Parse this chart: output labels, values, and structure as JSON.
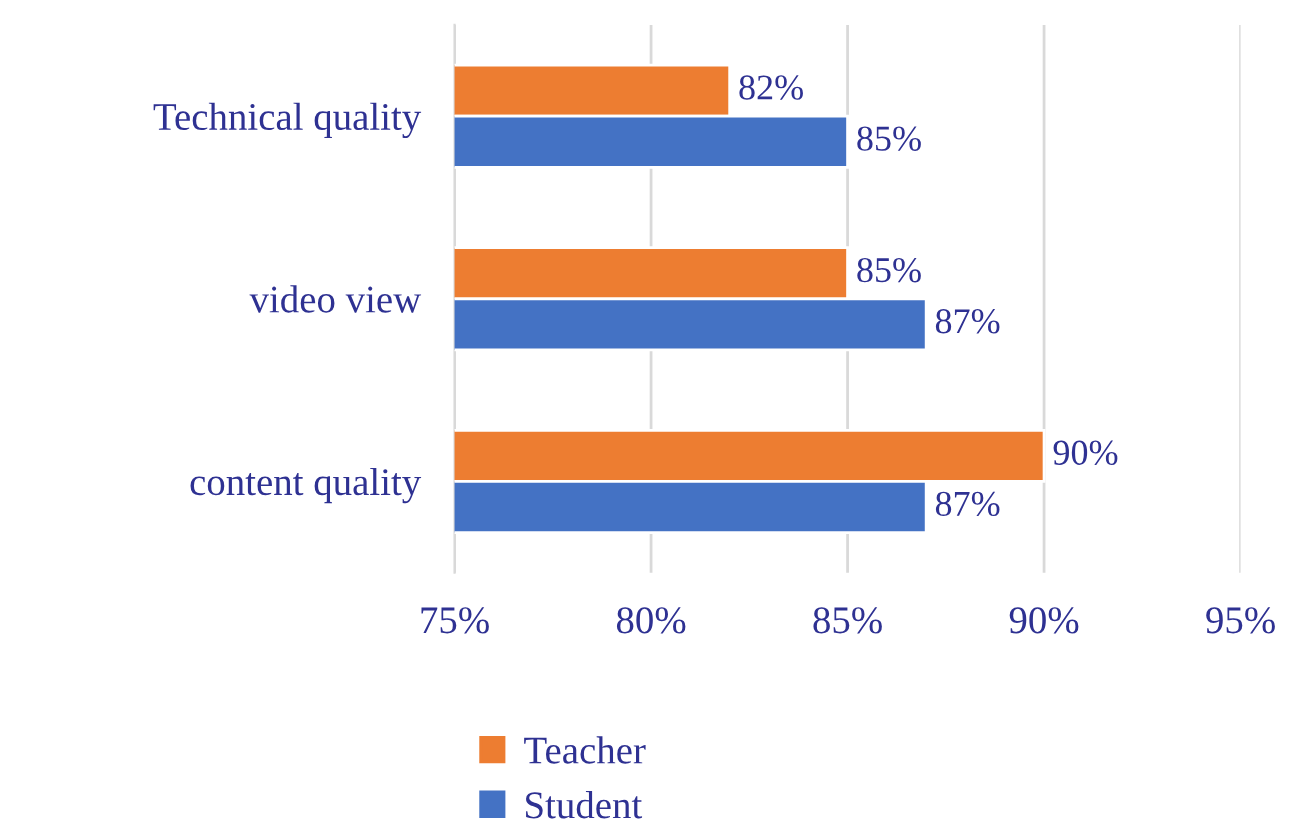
{
  "chart_data": {
    "type": "bar",
    "orientation": "horizontal",
    "categories": [
      "Technical quality",
      "video view",
      "content quality"
    ],
    "series": [
      {
        "name": "Teacher",
        "color": "#ed7d31",
        "values": [
          82,
          85,
          90
        ],
        "value_labels": [
          "82%",
          "85%",
          "90%"
        ]
      },
      {
        "name": "Student",
        "color": "#4472c4",
        "values": [
          85,
          87,
          87
        ],
        "value_labels": [
          "85%",
          "87%",
          "87%"
        ]
      }
    ],
    "xlim": [
      75,
      95
    ],
    "xticks": [
      {
        "value": 75,
        "label": "75%"
      },
      {
        "value": 80,
        "label": "80%"
      },
      {
        "value": 85,
        "label": "85%"
      },
      {
        "value": 90,
        "label": "90%"
      },
      {
        "value": 95,
        "label": "95%"
      }
    ],
    "grid": "x",
    "legend": "bottom"
  }
}
